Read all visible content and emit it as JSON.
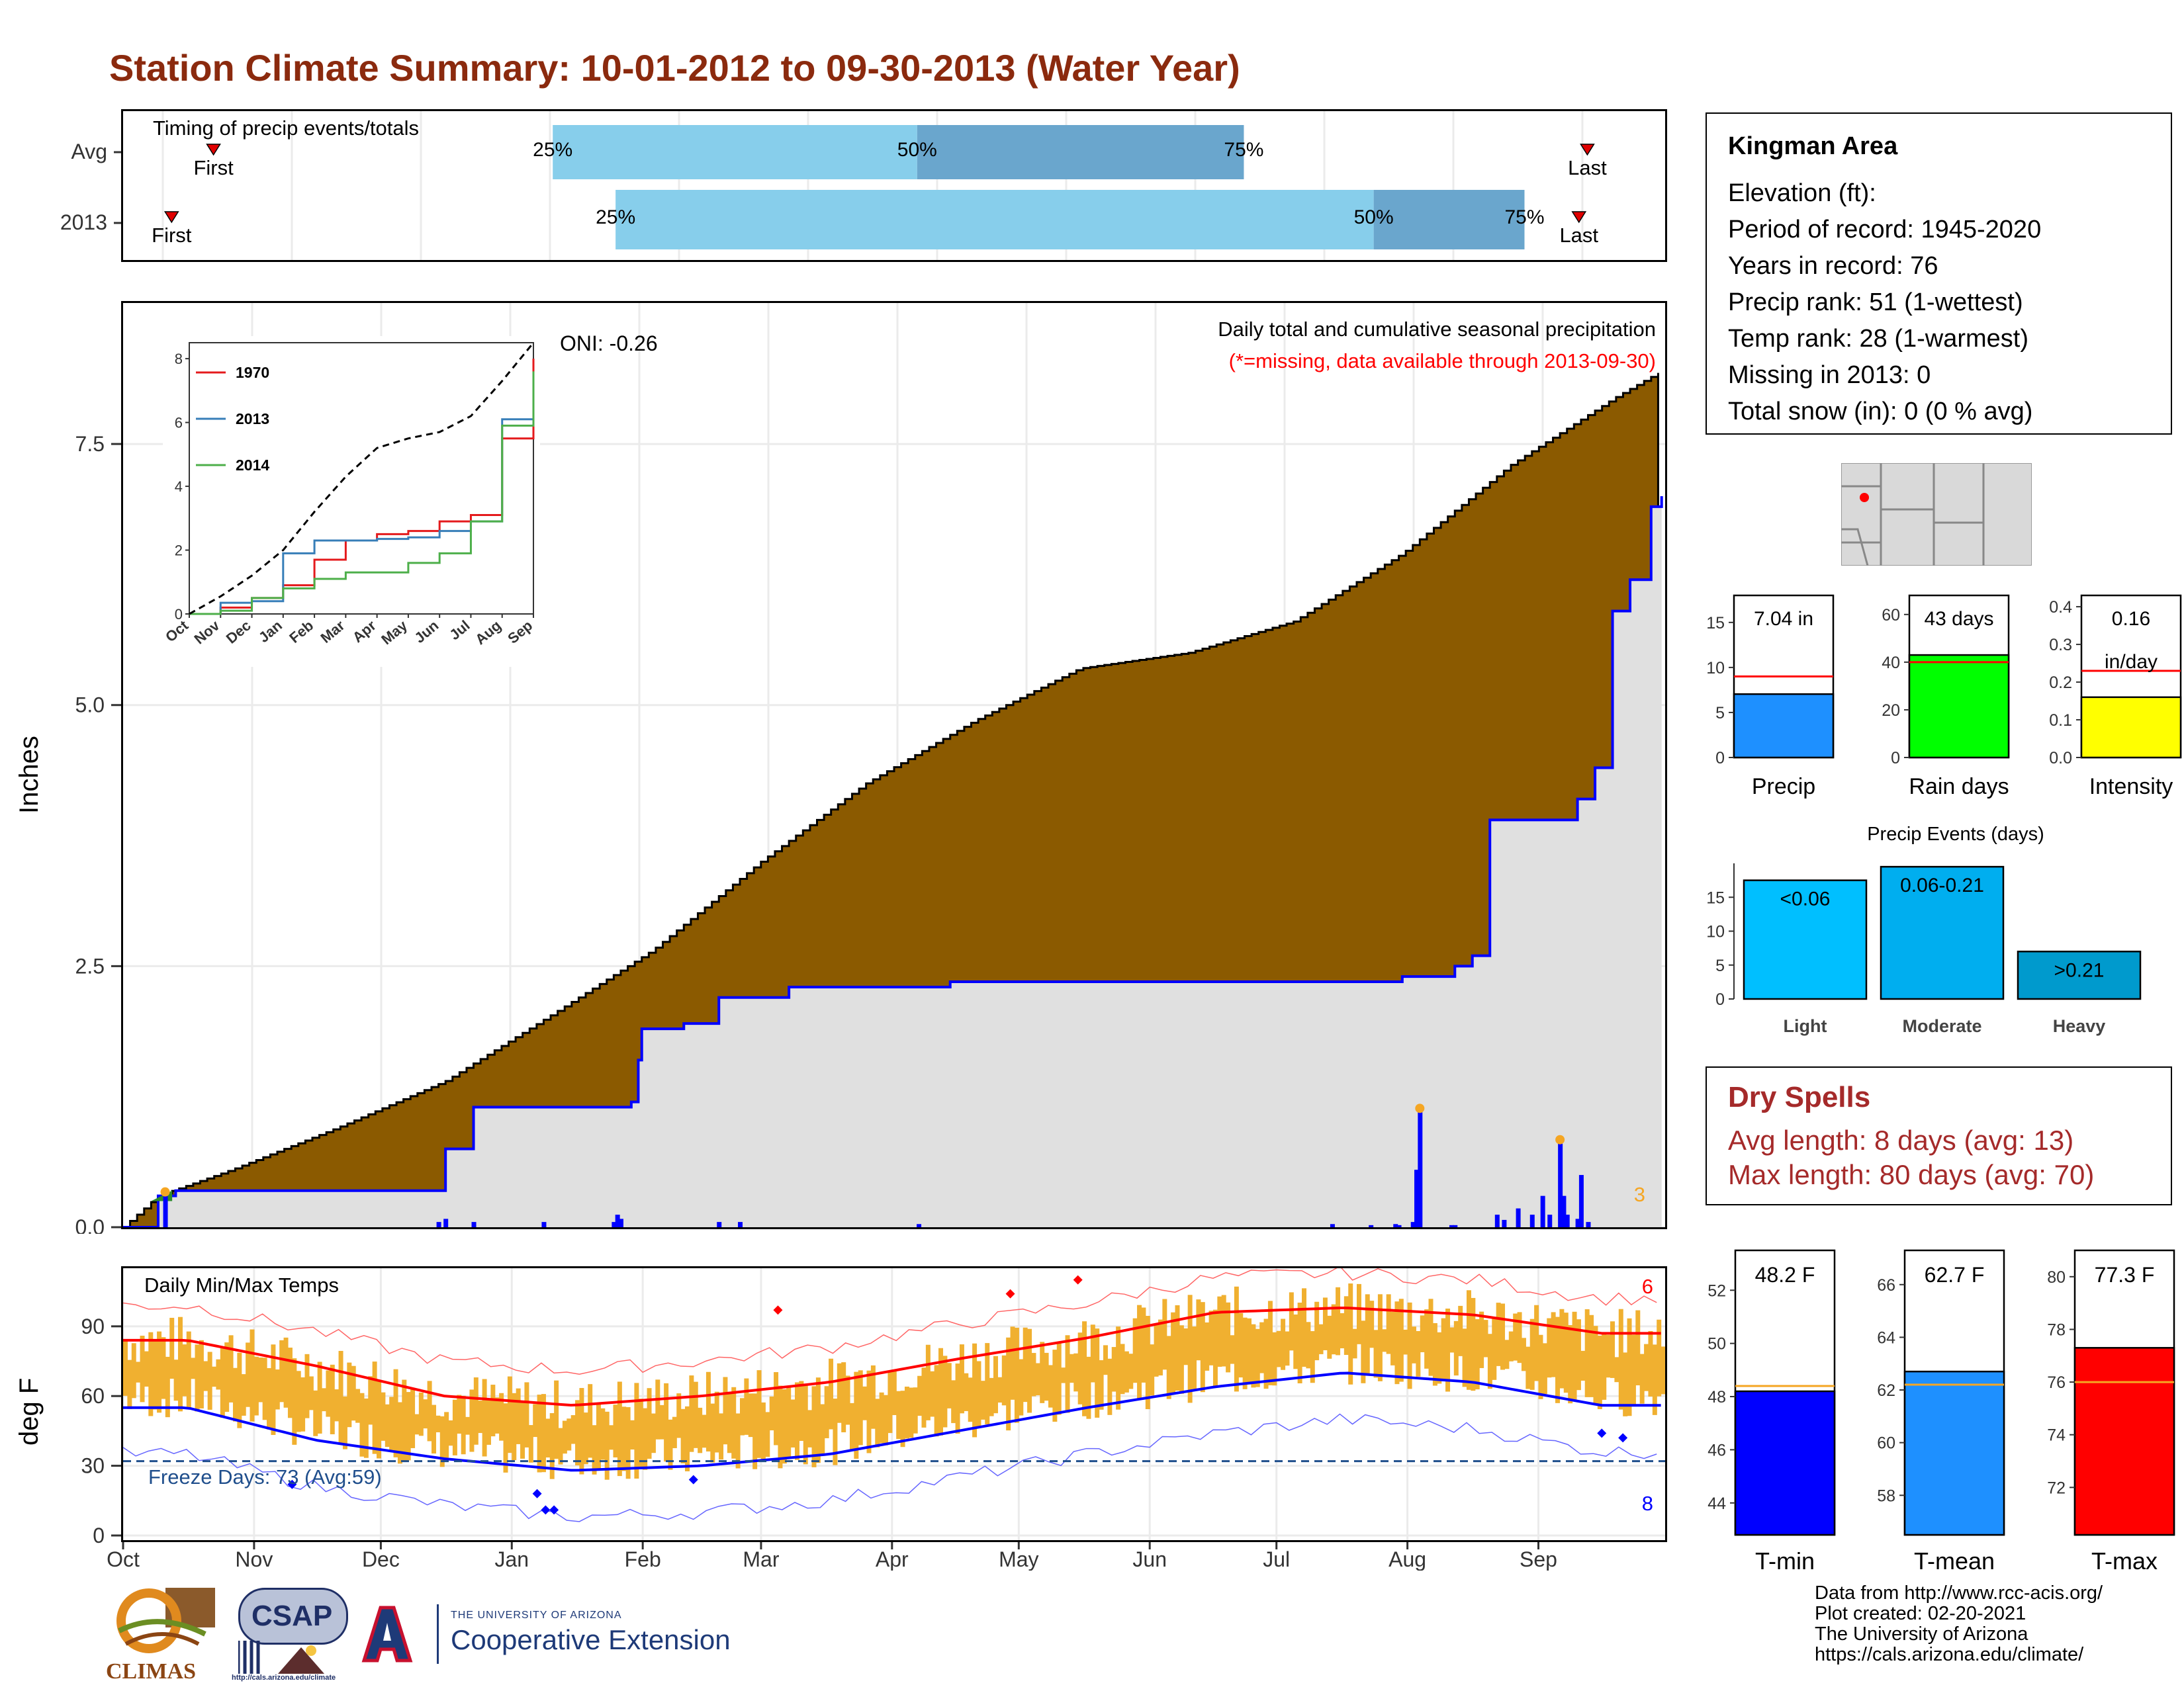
{
  "title": "Station Climate Summary: 10-01-2012 to 09-30-2013 (Water Year)",
  "info": {
    "station": "Kingman Area",
    "lines": [
      "Elevation (ft):",
      "Period of record: 1945-2020",
      "Years in record: 76",
      "Precip rank: 51 (1-wettest)",
      "Temp rank: 28 (1-warmest)",
      "Missing in 2013: 0",
      "Total snow (in): 0 (0 % avg)"
    ]
  },
  "dry_spells": {
    "title": "Dry Spells",
    "avg": "Avg length: 8 days (avg: 13)",
    "max": "Max length: 80 days (avg: 70)"
  },
  "credits": [
    "Data from http://www.rcc-acis.org/",
    "Plot created: 02-20-2021",
    "The University of Arizona",
    "https://cals.arizona.edu/climate/"
  ],
  "logos": {
    "climas": "CLIMAS",
    "csap": "CSAP",
    "csap_url": "http://cals.arizona.edu/climate",
    "ua_small": "THE UNIVERSITY OF ARIZONA",
    "ua_big": "Cooperative Extension"
  },
  "colors": {
    "title": "#8b2a0e",
    "cum_fill": "#8b5a00",
    "avg_fill": "#e0e0e0",
    "line_blue": "#0000ff",
    "bar_light": "#87ceeb",
    "bar_dark": "#6aa6cd",
    "temp_bar": "#f0b030",
    "dry_spell": "#a52a2a"
  },
  "chart_data": [
    {
      "id": "timing",
      "type": "bar",
      "title": "Timing of precip events/totals",
      "rows": [
        {
          "label": "Avg",
          "first_day": 20,
          "q25_day": 101,
          "q50_day": 188,
          "q75_day": 266,
          "last_day": 348
        },
        {
          "label": "2013",
          "first_day": 10,
          "q25_day": 116,
          "q50_day": 297,
          "q75_day": 333,
          "last_day": 346
        }
      ],
      "labels": {
        "first": "First",
        "last": "Last",
        "q25": "25%",
        "q50": "50%",
        "q75": "75%"
      }
    },
    {
      "id": "cumulative",
      "type": "area",
      "title": "Daily total and cumulative seasonal precipitation",
      "subtitle": "(*=missing, data available through 2013-09-30)",
      "ylabel": "Inches",
      "ylim": [
        0,
        8.85
      ],
      "yticks": [
        "0.0",
        "2.5",
        "5.0",
        "7.5"
      ],
      "oni": "ONI: -0.26",
      "count_label": "3",
      "cumulative_curve": [
        [
          0,
          0
        ],
        [
          10,
          0.3
        ],
        [
          31,
          0.55
        ],
        [
          61,
          0.95
        ],
        [
          92,
          1.4
        ],
        [
          123,
          2.05
        ],
        [
          151,
          2.65
        ],
        [
          182,
          3.5
        ],
        [
          212,
          4.25
        ],
        [
          243,
          4.85
        ],
        [
          273,
          5.35
        ],
        [
          304,
          5.5
        ],
        [
          334,
          5.8
        ],
        [
          365,
          6.45
        ],
        [
          396,
          7.3
        ],
        [
          426,
          7.95
        ],
        [
          439,
          8.2
        ]
      ],
      "year_curve": [
        [
          0,
          0
        ],
        [
          10,
          0.3
        ],
        [
          15,
          0.35
        ],
        [
          74,
          0.35
        ],
        [
          90,
          0.35
        ],
        [
          92,
          0.75
        ],
        [
          100,
          1.15
        ],
        [
          120,
          1.15
        ],
        [
          145,
          1.2
        ],
        [
          147,
          1.6
        ],
        [
          148,
          1.9
        ],
        [
          160,
          1.95
        ],
        [
          170,
          2.2
        ],
        [
          190,
          2.3
        ],
        [
          235,
          2.3
        ],
        [
          236,
          2.35
        ],
        [
          300,
          2.35
        ],
        [
          365,
          2.4
        ],
        [
          380,
          2.5
        ],
        [
          385,
          2.6
        ],
        [
          390,
          3.9
        ],
        [
          405,
          3.9
        ],
        [
          400,
          3.9
        ],
        [
          410,
          3.9
        ],
        [
          415,
          4.1
        ],
        [
          420,
          4.4
        ],
        [
          425,
          5.9
        ],
        [
          430,
          6.2
        ],
        [
          436,
          6.9
        ],
        [
          439,
          7.0
        ]
      ],
      "daily_bars": [
        [
          12,
          0.3
        ],
        [
          90,
          0.05
        ],
        [
          92,
          0.08
        ],
        [
          100,
          0.05
        ],
        [
          120,
          0.05
        ],
        [
          140,
          0.05
        ],
        [
          141,
          0.12
        ],
        [
          142,
          0.08
        ],
        [
          170,
          0.05
        ],
        [
          176,
          0.05
        ],
        [
          227,
          0.03
        ],
        [
          345,
          0.03
        ],
        [
          356,
          0.02
        ],
        [
          363,
          0.03
        ],
        [
          364,
          0.02
        ],
        [
          368,
          0.05
        ],
        [
          369,
          0.55
        ],
        [
          370,
          1.1
        ],
        [
          379,
          0.02
        ],
        [
          380,
          0.02
        ],
        [
          392,
          0.12
        ],
        [
          394,
          0.07
        ],
        [
          398,
          0.18
        ],
        [
          402,
          0.12
        ],
        [
          405,
          0.3
        ],
        [
          407,
          0.12
        ],
        [
          410,
          0.8
        ],
        [
          411,
          0.3
        ],
        [
          412,
          0.12
        ],
        [
          415,
          0.08
        ],
        [
          416,
          0.5
        ],
        [
          418,
          0.05
        ]
      ]
    },
    {
      "id": "inset",
      "type": "line",
      "xticks": [
        "Oct",
        "Nov",
        "Dec",
        "Jan",
        "Feb",
        "Mar",
        "Apr",
        "May",
        "Jun",
        "Jul",
        "Aug",
        "Sep"
      ],
      "yticks": [
        "0",
        "2",
        "4",
        "6",
        "8"
      ],
      "ylim": [
        0,
        8.5
      ],
      "series": [
        {
          "name": "1970",
          "color": "#e41a1c",
          "values": [
            0,
            0.2,
            0.5,
            0.9,
            1.7,
            2.3,
            2.5,
            2.6,
            2.9,
            3.1,
            5.5,
            8.0
          ]
        },
        {
          "name": "2013",
          "color": "#377eb8",
          "values": [
            0,
            0.35,
            0.4,
            1.9,
            2.3,
            2.3,
            2.35,
            2.4,
            2.6,
            2.9,
            6.1,
            7.2
          ]
        },
        {
          "name": "2014",
          "color": "#4daf4a",
          "values": [
            0,
            0.1,
            0.5,
            0.8,
            1.1,
            1.3,
            1.3,
            1.6,
            1.9,
            2.9,
            5.9,
            7.6
          ]
        },
        {
          "color": "#000000",
          "values": [
            0,
            0.55,
            1.2,
            2.0,
            3.2,
            4.3,
            5.2,
            5.5,
            5.7,
            6.2,
            7.3,
            8.5
          ]
        }
      ]
    },
    {
      "id": "temps",
      "type": "line",
      "title": "Daily Min/Max Temps",
      "ylabel": "deg F",
      "ylim": [
        -2,
        115
      ],
      "yticks": [
        "0",
        "30",
        "60",
        "90"
      ],
      "xticks": [
        "Oct",
        "Nov",
        "Dec",
        "Jan",
        "Feb",
        "Mar",
        "Apr",
        "May",
        "Jun",
        "Jul",
        "Aug",
        "Sep"
      ],
      "freeze_label": "Freeze Days: 73 (Avg:59)",
      "freeze_line": 32,
      "record_high_count": "6",
      "record_low_count": "8",
      "avg_max_monthly": [
        84,
        73,
        60,
        56,
        60,
        66,
        76,
        85,
        96,
        98,
        95,
        87
      ],
      "avg_min_monthly": [
        55,
        41,
        33,
        28,
        30,
        35,
        45,
        55,
        64,
        70,
        66,
        56
      ]
    },
    {
      "id": "precip-bars",
      "type": "bar",
      "categories": [
        "Precip",
        "Rain days",
        "Intensity"
      ],
      "values": [
        7.04,
        43,
        0.16
      ],
      "averages": [
        9.0,
        40,
        0.23
      ],
      "value_labels": [
        "7.04 in",
        "43 days",
        "0.16"
      ],
      "unit_extra": "in/day",
      "ylims": [
        [
          0,
          18
        ],
        [
          0,
          68
        ],
        [
          0,
          0.43
        ]
      ],
      "yticks": [
        [
          "0",
          "5",
          "10",
          "15"
        ],
        [
          "0",
          "20",
          "40",
          "60"
        ],
        [
          "0.0",
          "0.1",
          "0.2",
          "0.3",
          "0.4"
        ]
      ],
      "fills": [
        "#1e90ff",
        "#00ff00",
        "#ffff00"
      ]
    },
    {
      "id": "precip-events",
      "type": "bar",
      "title": "Precip Events (days)",
      "categories": [
        "Light",
        "Moderate",
        "Heavy"
      ],
      "values": [
        17.5,
        19.5,
        7
      ],
      "value_labels": [
        "<0.06",
        "0.06-0.21",
        ">0.21"
      ],
      "ylim": [
        0,
        20
      ],
      "yticks": [
        "0",
        "5",
        "10",
        "15"
      ],
      "fills": [
        "#00bfff",
        "#00aeef",
        "#009acd"
      ]
    },
    {
      "id": "temp-bars",
      "type": "bar",
      "categories": [
        "T-min",
        "T-mean",
        "T-max"
      ],
      "values": [
        48.2,
        62.7,
        77.3
      ],
      "averages": [
        48.4,
        62.2,
        76.0
      ],
      "value_labels": [
        "48.2 F",
        "62.7 F",
        "77.3 F"
      ],
      "ylims": [
        [
          42.8,
          53.5
        ],
        [
          56.5,
          67.3
        ],
        [
          70.2,
          81.0
        ]
      ],
      "yticks": [
        [
          "44",
          "46",
          "48",
          "50",
          "52"
        ],
        [
          "58",
          "60",
          "62",
          "64",
          "66"
        ],
        [
          "72",
          "74",
          "76",
          "78",
          "80"
        ]
      ],
      "fills": [
        "#0000ff",
        "#1e90ff",
        "#ff0000"
      ]
    }
  ]
}
